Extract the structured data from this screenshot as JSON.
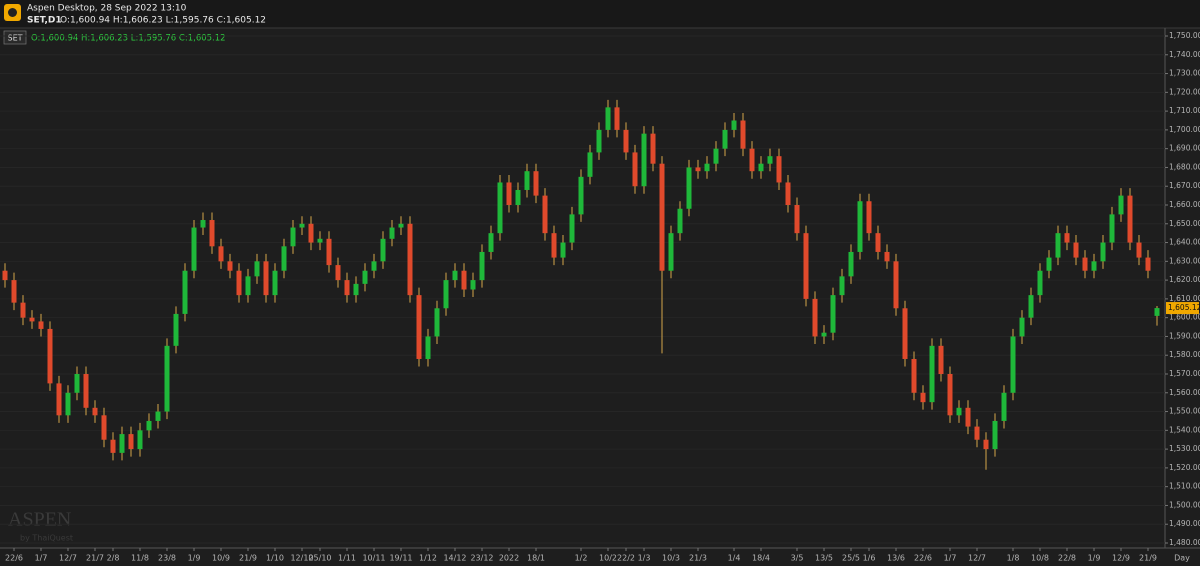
{
  "header": {
    "title": "Aspen Desktop, 28 Sep 2022 13:10",
    "symbol": "SET,D1",
    "ohlc": "O:1,600.94 H:1,606.23 L:1,595.76 C:1,605.12"
  },
  "chart_data": {
    "type": "candlestick",
    "legend_symbol": "SET",
    "legend_text": "O:1,600.94 H:1,606.23 L:1,595.76 C:1,605.12",
    "watermark": "ASPEN",
    "watermark_sub": "by ThaiQuest",
    "x_unit": "Day",
    "last_price_label": "1,605.12",
    "up_color": "#1fb83a",
    "down_color": "#e04a2c",
    "grid": true,
    "categories": [
      null,
      "22/6",
      null,
      null,
      "1/7",
      null,
      null,
      "12/7",
      null,
      null,
      "21/7",
      null,
      "2/8",
      null,
      null,
      "11/8",
      null,
      null,
      "23/8",
      null,
      null,
      "1/9",
      null,
      null,
      "10/9",
      null,
      null,
      "21/9",
      null,
      null,
      "1/10",
      null,
      null,
      "12/10",
      null,
      "25/10",
      null,
      null,
      "1/11",
      null,
      null,
      "10/11",
      null,
      null,
      "19/11",
      null,
      null,
      "1/12",
      null,
      null,
      "14/12",
      null,
      null,
      "23/12",
      null,
      null,
      "2022",
      null,
      null,
      "18/1",
      null,
      null,
      null,
      null,
      "1/2",
      null,
      null,
      "10/2",
      null,
      "22/2",
      null,
      "1/3",
      null,
      null,
      "10/3",
      null,
      null,
      "21/3",
      null,
      null,
      null,
      "1/4",
      null,
      null,
      "18/4",
      null,
      null,
      null,
      "3/5",
      null,
      null,
      "13/5",
      null,
      null,
      "25/5",
      null,
      "1/6",
      null,
      null,
      "13/6",
      null,
      null,
      "22/6",
      null,
      null,
      "1/7",
      null,
      null,
      "12/7",
      null,
      null,
      null,
      "1/8",
      null,
      null,
      "10/8",
      null,
      null,
      "22/8",
      null,
      null,
      "1/9",
      null,
      null,
      "12/9",
      null,
      null,
      "21/9",
      null
    ],
    "open": [
      1625,
      1620,
      1608,
      1600,
      1598,
      1594,
      1565,
      1548,
      1560,
      1570,
      1552,
      1548,
      1535,
      1528,
      1538,
      1530,
      1540,
      1545,
      1550,
      1585,
      1602,
      1625,
      1648,
      1652,
      1638,
      1630,
      1625,
      1612,
      1622,
      1630,
      1612,
      1625,
      1638,
      1648,
      1650,
      1640,
      1642,
      1628,
      1620,
      1612,
      1618,
      1625,
      1630,
      1642,
      1648,
      1650,
      1612,
      1578,
      1590,
      1605,
      1620,
      1625,
      1615,
      1620,
      1635,
      1645,
      1672,
      1660,
      1668,
      1678,
      1665,
      1645,
      1632,
      1640,
      1655,
      1675,
      1688,
      1700,
      1712,
      1700,
      1688,
      1670,
      1698,
      1682,
      1625,
      1645,
      1658,
      1680,
      1678,
      1682,
      1690,
      1700,
      1705,
      1690,
      1678,
      1682,
      1686,
      1672,
      1660,
      1645,
      1610,
      1590,
      1592,
      1612,
      1622,
      1635,
      1662,
      1645,
      1635,
      1630,
      1605,
      1578,
      1560,
      1555,
      1585,
      1570,
      1548,
      1552,
      1542,
      1535,
      1530,
      1545,
      1560,
      1590,
      1600,
      1612,
      1625,
      1632,
      1645,
      1640,
      1632,
      1625,
      1630,
      1640,
      1655,
      1665,
      1640,
      1632,
      1600.94
    ],
    "high": [
      1629,
      1624,
      1612,
      1604,
      1602,
      1598,
      1569,
      1564,
      1574,
      1574,
      1556,
      1552,
      1539,
      1542,
      1542,
      1544,
      1549,
      1554,
      1589,
      1606,
      1629,
      1652,
      1656,
      1656,
      1642,
      1634,
      1629,
      1626,
      1634,
      1634,
      1629,
      1642,
      1652,
      1654,
      1654,
      1646,
      1646,
      1632,
      1624,
      1622,
      1629,
      1634,
      1646,
      1652,
      1654,
      1654,
      1616,
      1594,
      1609,
      1624,
      1629,
      1629,
      1624,
      1639,
      1649,
      1676,
      1676,
      1672,
      1682,
      1682,
      1669,
      1649,
      1644,
      1659,
      1679,
      1692,
      1704,
      1716,
      1716,
      1704,
      1692,
      1702,
      1702,
      1686,
      1649,
      1662,
      1684,
      1684,
      1686,
      1694,
      1704,
      1709,
      1709,
      1694,
      1686,
      1690,
      1690,
      1676,
      1664,
      1649,
      1614,
      1596,
      1616,
      1626,
      1639,
      1666,
      1666,
      1649,
      1639,
      1634,
      1609,
      1582,
      1564,
      1589,
      1589,
      1574,
      1556,
      1556,
      1546,
      1539,
      1549,
      1564,
      1594,
      1604,
      1616,
      1629,
      1636,
      1649,
      1649,
      1644,
      1636,
      1634,
      1644,
      1659,
      1669,
      1669,
      1644,
      1636,
      1606.23
    ],
    "low": [
      1616,
      1604,
      1596,
      1594,
      1590,
      1561,
      1544,
      1544,
      1556,
      1548,
      1544,
      1531,
      1524,
      1524,
      1526,
      1526,
      1536,
      1541,
      1546,
      1581,
      1598,
      1621,
      1644,
      1634,
      1626,
      1621,
      1608,
      1608,
      1618,
      1608,
      1608,
      1621,
      1634,
      1644,
      1636,
      1636,
      1624,
      1616,
      1608,
      1608,
      1614,
      1621,
      1626,
      1638,
      1644,
      1608,
      1574,
      1574,
      1586,
      1601,
      1616,
      1611,
      1611,
      1616,
      1631,
      1641,
      1656,
      1656,
      1664,
      1661,
      1641,
      1628,
      1628,
      1636,
      1651,
      1671,
      1684,
      1696,
      1696,
      1684,
      1666,
      1666,
      1678,
      1581,
      1621,
      1641,
      1654,
      1674,
      1674,
      1678,
      1686,
      1696,
      1686,
      1674,
      1674,
      1678,
      1668,
      1656,
      1641,
      1606,
      1586,
      1586,
      1588,
      1608,
      1618,
      1631,
      1641,
      1631,
      1626,
      1601,
      1574,
      1556,
      1551,
      1551,
      1566,
      1544,
      1544,
      1538,
      1531,
      1519,
      1526,
      1541,
      1556,
      1586,
      1596,
      1608,
      1621,
      1628,
      1636,
      1628,
      1621,
      1621,
      1626,
      1636,
      1651,
      1636,
      1628,
      1621,
      1595.76
    ],
    "close": [
      1620,
      1608,
      1600,
      1598,
      1594,
      1565,
      1548,
      1560,
      1570,
      1552,
      1548,
      1535,
      1528,
      1538,
      1530,
      1540,
      1545,
      1550,
      1585,
      1602,
      1625,
      1648,
      1652,
      1638,
      1630,
      1625,
      1612,
      1622,
      1630,
      1612,
      1625,
      1638,
      1648,
      1650,
      1640,
      1642,
      1628,
      1620,
      1612,
      1618,
      1625,
      1630,
      1642,
      1648,
      1650,
      1612,
      1578,
      1590,
      1605,
      1620,
      1625,
      1615,
      1620,
      1635,
      1645,
      1672,
      1660,
      1668,
      1678,
      1665,
      1645,
      1632,
      1640,
      1655,
      1675,
      1688,
      1700,
      1712,
      1700,
      1688,
      1670,
      1698,
      1682,
      1625,
      1645,
      1658,
      1680,
      1678,
      1682,
      1690,
      1700,
      1705,
      1690,
      1678,
      1682,
      1686,
      1672,
      1660,
      1645,
      1610,
      1590,
      1592,
      1612,
      1622,
      1635,
      1662,
      1645,
      1635,
      1630,
      1605,
      1578,
      1560,
      1555,
      1585,
      1570,
      1548,
      1552,
      1542,
      1535,
      1530,
      1545,
      1560,
      1590,
      1600,
      1612,
      1625,
      1632,
      1645,
      1640,
      1632,
      1625,
      1630,
      1640,
      1655,
      1665,
      1640,
      1632,
      1625,
      1605.12
    ],
    "ylim": [
      1480,
      1750
    ],
    "yticks": [
      {
        "value": 1750,
        "label": "1,750.00"
      },
      {
        "value": 1740,
        "label": "1,740.00"
      },
      {
        "value": 1730,
        "label": "1,730.00"
      },
      {
        "value": 1720,
        "label": "1,720.00"
      },
      {
        "value": 1710,
        "label": "1,710.00"
      },
      {
        "value": 1700,
        "label": "1,700.00"
      },
      {
        "value": 1690,
        "label": "1,690.00"
      },
      {
        "value": 1680,
        "label": "1,680.00"
      },
      {
        "value": 1670,
        "label": "1,670.00"
      },
      {
        "value": 1660,
        "label": "1,660.00"
      },
      {
        "value": 1650,
        "label": "1,650.00"
      },
      {
        "value": 1640,
        "label": "1,640.00"
      },
      {
        "value": 1630,
        "label": "1,630.00"
      },
      {
        "value": 1620,
        "label": "1,620.00"
      },
      {
        "value": 1610,
        "label": "1,610.00"
      },
      {
        "value": 1600,
        "label": "1,600.00"
      },
      {
        "value": 1590,
        "label": "1,590.00"
      },
      {
        "value": 1580,
        "label": "1,580.00"
      },
      {
        "value": 1570,
        "label": "1,570.00"
      },
      {
        "value": 1560,
        "label": "1,560.00"
      },
      {
        "value": 1550,
        "label": "1,550.00"
      },
      {
        "value": 1540,
        "label": "1,540.00"
      },
      {
        "value": 1530,
        "label": "1,530.00"
      },
      {
        "value": 1520,
        "label": "1,520.00"
      },
      {
        "value": 1510,
        "label": "1,510.00"
      },
      {
        "value": 1500,
        "label": "1,500.00"
      },
      {
        "value": 1490,
        "label": "1,490.00"
      },
      {
        "value": 1480,
        "label": "1,480.00"
      }
    ]
  }
}
